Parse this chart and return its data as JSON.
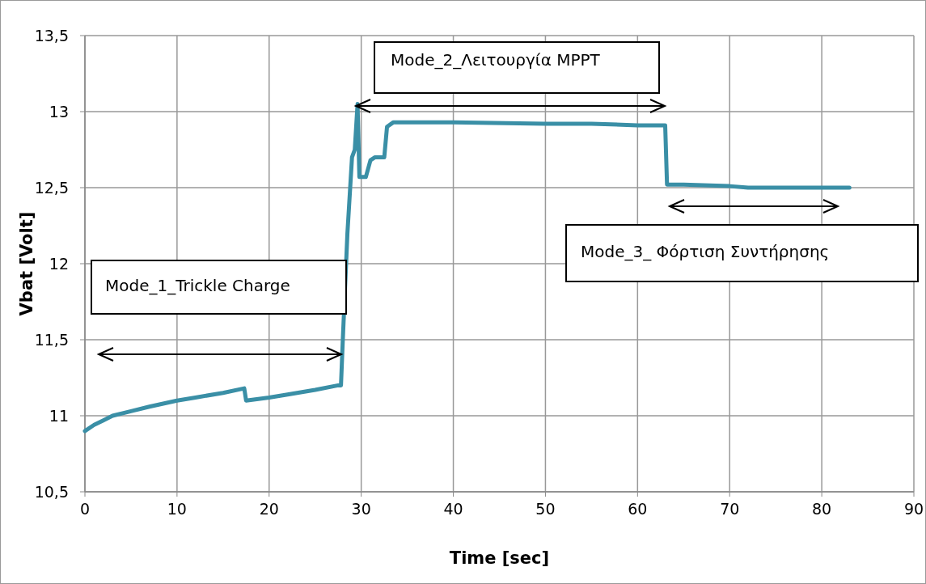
{
  "chart_data": {
    "type": "line",
    "xlabel": "Time [sec]",
    "ylabel": "Vbat [Volt]",
    "xlim": [
      0,
      90
    ],
    "xticks": [
      0,
      10,
      20,
      30,
      40,
      50,
      60,
      70,
      80,
      90
    ],
    "ylim": [
      10.5,
      13.5
    ],
    "yticks": [
      {
        "value": 10.5,
        "label": "10,5"
      },
      11,
      {
        "value": 11.5,
        "label": "11,5"
      },
      12,
      {
        "value": 12.5,
        "label": "12,5"
      },
      13,
      {
        "value": 13.5,
        "label": "13,5"
      }
    ],
    "grid": true,
    "marker": "none",
    "line_style": "solid",
    "annotations": [
      "Mode_1_Trickle Charge",
      "Mode_2_Λειτουργία MPPT",
      "Mode_3_ Φόρτιση Συντήρησης"
    ],
    "series": [
      {
        "color": "#3a8fa6",
        "x": [
          0,
          1,
          2,
          3,
          5,
          7,
          10,
          12,
          15,
          17.3,
          17.5,
          20,
          22,
          25,
          27.5,
          27.8,
          28,
          28.5,
          29,
          29.3,
          29.6,
          29.8,
          30.5,
          31,
          31.5,
          32.5,
          32.8,
          33.5,
          40,
          50,
          55,
          60,
          63,
          63.2,
          65,
          70,
          72,
          83
        ],
        "values": [
          10.9,
          10.94,
          10.97,
          11.0,
          11.03,
          11.06,
          11.1,
          11.12,
          11.15,
          11.18,
          11.1,
          11.12,
          11.14,
          11.17,
          11.2,
          11.2,
          11.5,
          12.2,
          12.7,
          12.75,
          13.05,
          12.57,
          12.57,
          12.68,
          12.7,
          12.7,
          12.9,
          12.93,
          12.93,
          12.92,
          12.92,
          12.91,
          12.91,
          12.52,
          12.52,
          12.51,
          12.5,
          12.5
        ]
      }
    ]
  }
}
